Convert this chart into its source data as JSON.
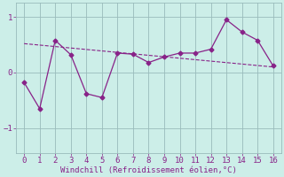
{
  "x": [
    0,
    1,
    2,
    3,
    4,
    5,
    6,
    7,
    8,
    9,
    10,
    11,
    12,
    13,
    14,
    15,
    16
  ],
  "y": [
    -0.18,
    -0.65,
    0.58,
    0.32,
    -0.38,
    -0.45,
    0.35,
    0.33,
    0.18,
    0.28,
    0.35,
    0.35,
    0.42,
    0.95,
    0.73,
    0.58,
    0.12
  ],
  "trend_x": [
    0,
    16
  ],
  "trend_y": [
    0.52,
    0.1
  ],
  "line_color": "#882288",
  "bg_color": "#cceee8",
  "grid_color": "#99bbbb",
  "xlabel": "Windchill (Refroidissement éolien,°C)",
  "xticks": [
    0,
    1,
    2,
    3,
    4,
    5,
    6,
    7,
    8,
    9,
    10,
    11,
    12,
    13,
    14,
    15,
    16
  ],
  "yticks": [
    -1,
    0,
    1
  ],
  "ylim": [
    -1.45,
    1.25
  ],
  "xlim": [
    -0.5,
    16.5
  ],
  "tick_fontsize": 6.5,
  "xlabel_fontsize": 6.5
}
